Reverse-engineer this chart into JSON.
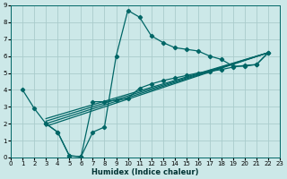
{
  "xlabel": "Humidex (Indice chaleur)",
  "bg_color": "#cce8e8",
  "grid_color": "#aacccc",
  "line_color": "#006666",
  "xlim": [
    0,
    23
  ],
  "ylim": [
    0,
    9
  ],
  "xticks": [
    0,
    1,
    2,
    3,
    4,
    5,
    6,
    7,
    8,
    9,
    10,
    11,
    12,
    13,
    14,
    15,
    16,
    17,
    18,
    19,
    20,
    21,
    22,
    23
  ],
  "yticks": [
    0,
    1,
    2,
    3,
    4,
    5,
    6,
    7,
    8,
    9
  ],
  "upper_x": [
    1,
    2,
    3,
    4,
    5,
    6,
    7,
    8,
    9,
    10,
    11,
    12,
    13,
    14,
    15,
    16,
    17,
    18,
    19,
    20,
    21,
    22
  ],
  "upper_y": [
    4.0,
    2.9,
    2.0,
    1.5,
    0.1,
    0.05,
    1.5,
    1.8,
    6.0,
    8.7,
    8.3,
    7.2,
    6.8,
    6.5,
    6.4,
    6.3,
    6.0,
    5.8,
    5.4,
    5.4,
    5.5,
    6.2
  ],
  "lower_x": [
    3,
    4,
    5,
    6,
    7,
    8,
    9,
    10,
    11,
    12,
    13,
    14,
    15,
    16,
    17,
    18,
    19,
    20,
    21,
    22
  ],
  "lower_y": [
    2.0,
    1.5,
    0.1,
    0.05,
    3.3,
    3.3,
    3.4,
    3.5,
    4.1,
    4.35,
    4.55,
    4.7,
    4.85,
    5.0,
    5.1,
    5.2,
    5.35,
    5.45,
    5.5,
    6.2
  ],
  "line1_x": [
    3,
    22
  ],
  "line1_y": [
    2.0,
    6.2
  ],
  "line2_x": [
    3,
    22
  ],
  "line2_y": [
    2.15,
    6.2
  ],
  "line3_x": [
    3,
    22
  ],
  "line3_y": [
    1.85,
    6.2
  ],
  "line4_x": [
    3,
    22
  ],
  "line4_y": [
    2.3,
    6.2
  ]
}
